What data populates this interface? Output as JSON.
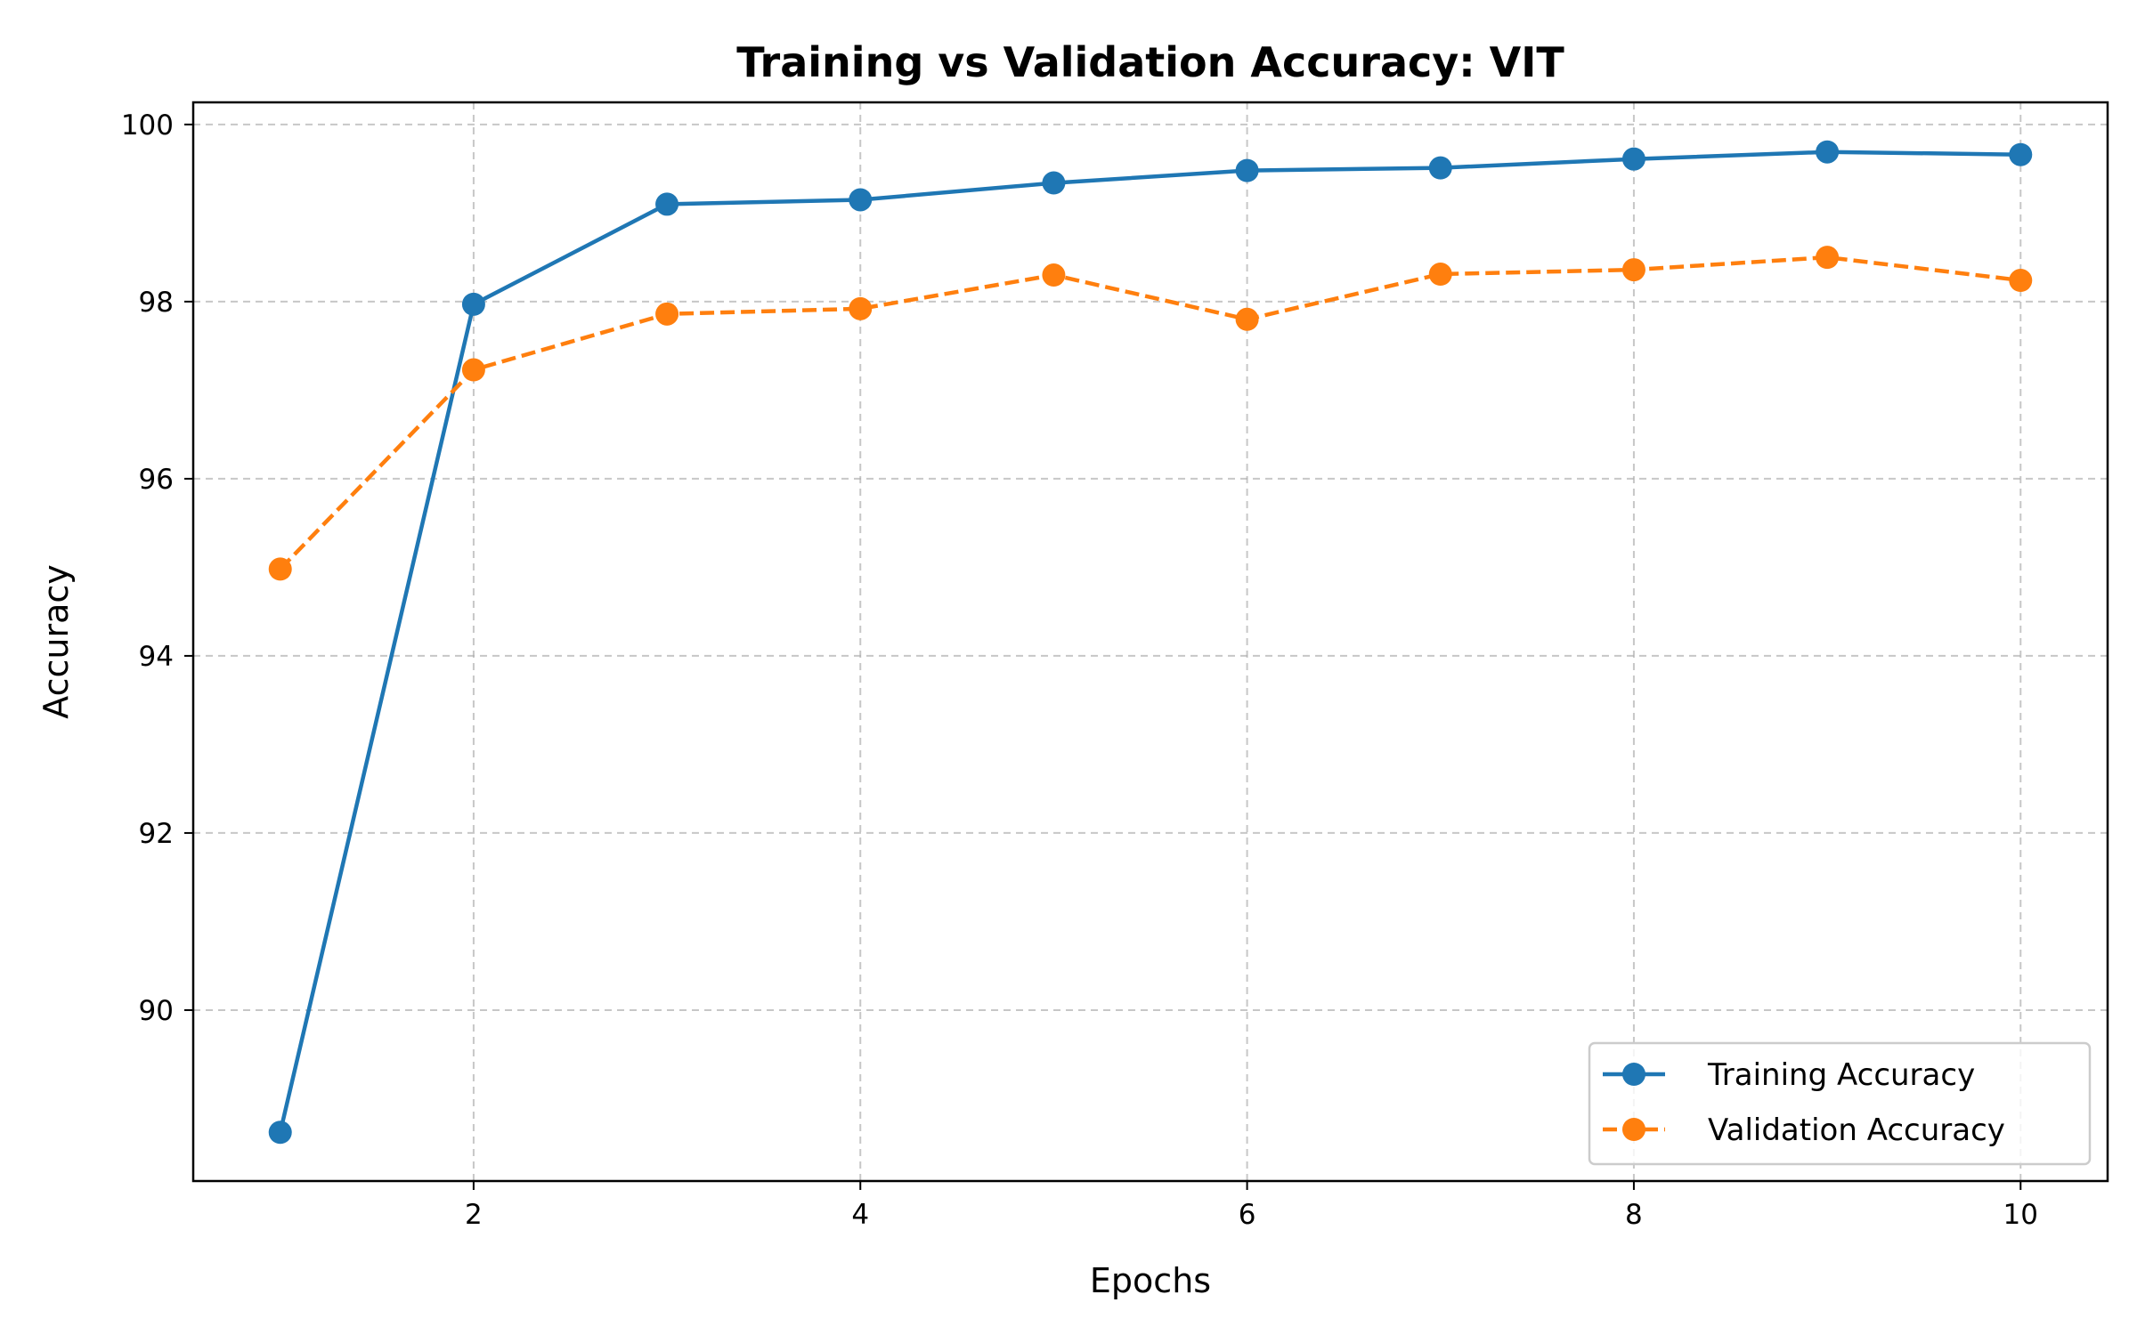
{
  "chart_data": {
    "type": "line",
    "title": "Training vs Validation Accuracy: VIT",
    "xlabel": "Epochs",
    "ylabel": "Accuracy",
    "x": [
      1,
      2,
      3,
      4,
      5,
      6,
      7,
      8,
      9,
      10
    ],
    "xlim": [
      0.55,
      10.45
    ],
    "ylim": [
      88.07,
      100.25
    ],
    "xticks": [
      2,
      4,
      6,
      8,
      10
    ],
    "yticks": [
      90,
      92,
      94,
      96,
      98,
      100
    ],
    "grid": true,
    "legend_position": "lower-right",
    "series": [
      {
        "name": "Training Accuracy",
        "values": [
          88.62,
          97.97,
          99.1,
          99.15,
          99.34,
          99.48,
          99.51,
          99.61,
          99.69,
          99.66
        ],
        "color": "#1f77b4",
        "line_style": "solid",
        "marker": "circle"
      },
      {
        "name": "Validation Accuracy",
        "values": [
          94.98,
          97.23,
          97.86,
          97.92,
          98.3,
          97.8,
          98.31,
          98.36,
          98.5,
          98.24
        ],
        "color": "#ff7f0e",
        "line_style": "dashed",
        "marker": "circle"
      }
    ]
  }
}
